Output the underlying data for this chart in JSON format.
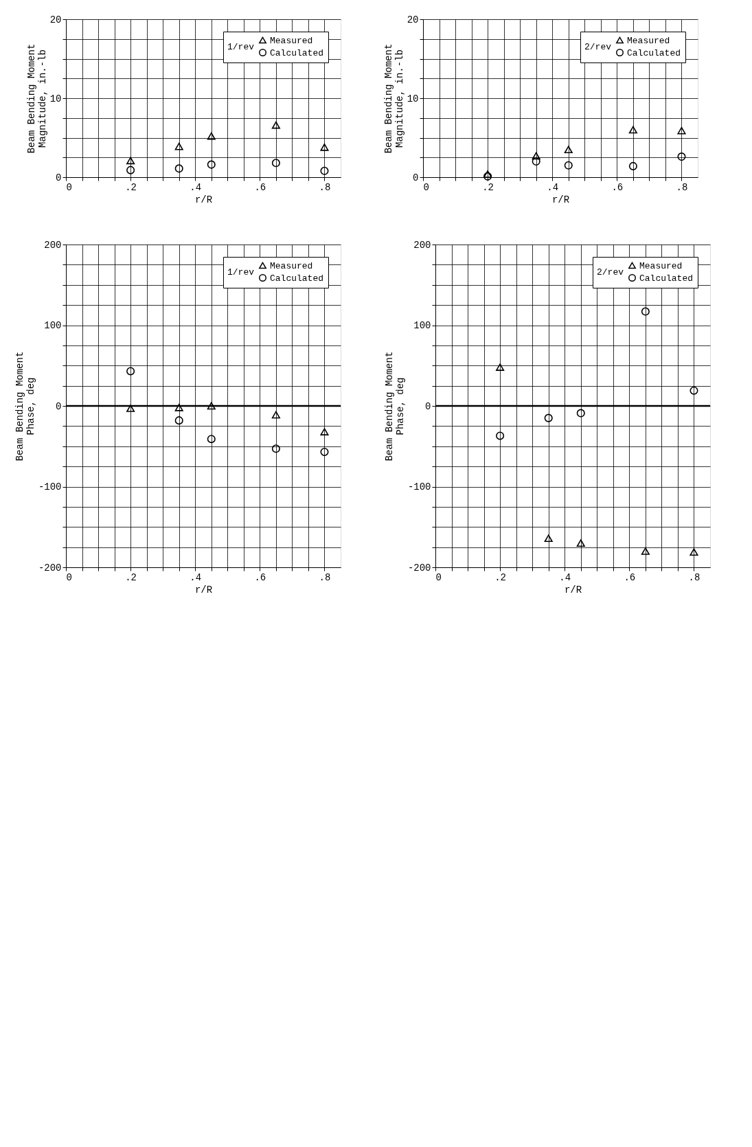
{
  "chart_data": [
    {
      "type": "scatter",
      "xlabel": "r/R",
      "ylabel": "Beam Bending Moment\nMagnitude, in.-lb",
      "legend_title": "1/rev",
      "legend": "top right",
      "grid": true,
      "xlim": [
        0,
        0.85
      ],
      "xticks": [
        0,
        {
          "value": 0.05,
          "label": null
        },
        {
          "value": 0.1,
          "label": null
        },
        {
          "value": 0.15,
          "label": null
        },
        {
          "value": 0.2,
          "label": ".2"
        },
        {
          "value": 0.25,
          "label": null
        },
        {
          "value": 0.3,
          "label": null
        },
        {
          "value": 0.35,
          "label": null
        },
        {
          "value": 0.4,
          "label": ".4"
        },
        {
          "value": 0.45,
          "label": null
        },
        {
          "value": 0.5,
          "label": null
        },
        {
          "value": 0.55,
          "label": null
        },
        {
          "value": 0.6,
          "label": ".6"
        },
        {
          "value": 0.65,
          "label": null
        },
        {
          "value": 0.7,
          "label": null
        },
        {
          "value": 0.75,
          "label": null
        },
        {
          "value": 0.8,
          "label": ".8"
        }
      ],
      "ylim": [
        0,
        20
      ],
      "yticks": [
        0,
        {
          "value": 2.5,
          "label": null
        },
        {
          "value": 5,
          "label": null
        },
        {
          "value": 7.5,
          "label": null
        },
        10,
        {
          "value": 12.5,
          "label": null
        },
        {
          "value": 15,
          "label": null
        },
        {
          "value": 17.5,
          "label": null
        },
        20
      ],
      "x": [
        0.2,
        0.35,
        0.45,
        0.65,
        0.8
      ],
      "series": [
        {
          "name": "Measured",
          "color": "#000000",
          "marker": "triangle",
          "values": [
            2.1,
            3.9,
            5.2,
            6.6,
            3.8
          ]
        },
        {
          "name": "Calculated",
          "color": "#000000",
          "marker": "circle",
          "values": [
            0.9,
            1.1,
            1.6,
            1.8,
            0.8
          ]
        }
      ]
    },
    {
      "type": "scatter",
      "xlabel": "r/R",
      "ylabel": "Beam Bending Moment\nMagnitude, in.-lb",
      "legend_title": "2/rev",
      "legend": "top right",
      "grid": true,
      "xlim": [
        0,
        0.85
      ],
      "xticks": [
        0,
        {
          "value": 0.05,
          "label": null
        },
        {
          "value": 0.1,
          "label": null
        },
        {
          "value": 0.15,
          "label": null
        },
        {
          "value": 0.2,
          "label": ".2"
        },
        {
          "value": 0.25,
          "label": null
        },
        {
          "value": 0.3,
          "label": null
        },
        {
          "value": 0.35,
          "label": null
        },
        {
          "value": 0.4,
          "label": ".4"
        },
        {
          "value": 0.45,
          "label": null
        },
        {
          "value": 0.5,
          "label": null
        },
        {
          "value": 0.55,
          "label": null
        },
        {
          "value": 0.6,
          "label": ".6"
        },
        {
          "value": 0.65,
          "label": null
        },
        {
          "value": 0.7,
          "label": null
        },
        {
          "value": 0.75,
          "label": null
        },
        {
          "value": 0.8,
          "label": ".8"
        }
      ],
      "ylim": [
        0,
        20
      ],
      "yticks": [
        0,
        {
          "value": 2.5,
          "label": null
        },
        {
          "value": 5,
          "label": null
        },
        {
          "value": 7.5,
          "label": null
        },
        10,
        {
          "value": 12.5,
          "label": null
        },
        {
          "value": 15,
          "label": null
        },
        {
          "value": 17.5,
          "label": null
        },
        20
      ],
      "x": [
        0.2,
        0.35,
        0.45,
        0.65,
        0.8
      ],
      "series": [
        {
          "name": "Measured",
          "color": "#000000",
          "marker": "triangle",
          "values": [
            0.4,
            2.7,
            3.5,
            6.0,
            5.9
          ]
        },
        {
          "name": "Calculated",
          "color": "#000000",
          "marker": "circle",
          "values": [
            0.1,
            2.0,
            1.5,
            1.4,
            2.6
          ]
        }
      ]
    },
    {
      "type": "scatter",
      "xlabel": "r/R",
      "ylabel": "Beam Bending Moment\nPhase, deg",
      "legend_title": "1/rev",
      "legend": "top right",
      "grid": true,
      "xlim": [
        0,
        0.85
      ],
      "xticks": [
        0,
        {
          "value": 0.05,
          "label": null
        },
        {
          "value": 0.1,
          "label": null
        },
        {
          "value": 0.15,
          "label": null
        },
        {
          "value": 0.2,
          "label": ".2"
        },
        {
          "value": 0.25,
          "label": null
        },
        {
          "value": 0.3,
          "label": null
        },
        {
          "value": 0.35,
          "label": null
        },
        {
          "value": 0.4,
          "label": ".4"
        },
        {
          "value": 0.45,
          "label": null
        },
        {
          "value": 0.5,
          "label": null
        },
        {
          "value": 0.55,
          "label": null
        },
        {
          "value": 0.6,
          "label": ".6"
        },
        {
          "value": 0.65,
          "label": null
        },
        {
          "value": 0.7,
          "label": null
        },
        {
          "value": 0.75,
          "label": null
        },
        {
          "value": 0.8,
          "label": ".8"
        }
      ],
      "ylim": [
        -200,
        200
      ],
      "yticks": [
        -200,
        {
          "value": -175,
          "label": null
        },
        {
          "value": -150,
          "label": null
        },
        {
          "value": -125,
          "label": null
        },
        -100,
        {
          "value": -75,
          "label": null
        },
        {
          "value": -50,
          "label": null
        },
        {
          "value": -25,
          "label": null
        },
        0,
        {
          "value": 25,
          "label": null
        },
        {
          "value": 50,
          "label": null
        },
        {
          "value": 75,
          "label": null
        },
        100,
        {
          "value": 125,
          "label": null
        },
        {
          "value": 150,
          "label": null
        },
        {
          "value": 175,
          "label": null
        },
        200
      ],
      "ref_lines": [
        {
          "axis": "y",
          "value": 0,
          "color": "#000000"
        }
      ],
      "x": [
        0.2,
        0.35,
        0.45,
        0.65,
        0.8
      ],
      "series": [
        {
          "name": "Measured",
          "color": "#000000",
          "marker": "triangle",
          "values": [
            -3,
            -2,
            0,
            -11,
            -32
          ]
        },
        {
          "name": "Calculated",
          "color": "#000000",
          "marker": "circle",
          "values": [
            43,
            -18,
            -41,
            -53,
            -57
          ]
        }
      ]
    },
    {
      "type": "scatter",
      "xlabel": "r/R",
      "ylabel": "Beam Bending Moment\nPhase, deg",
      "legend_title": "2/rev",
      "legend": "top right",
      "grid": true,
      "xlim": [
        0,
        0.85
      ],
      "xticks": [
        0,
        {
          "value": 0.05,
          "label": null
        },
        {
          "value": 0.1,
          "label": null
        },
        {
          "value": 0.15,
          "label": null
        },
        {
          "value": 0.2,
          "label": ".2"
        },
        {
          "value": 0.25,
          "label": null
        },
        {
          "value": 0.3,
          "label": null
        },
        {
          "value": 0.35,
          "label": null
        },
        {
          "value": 0.4,
          "label": ".4"
        },
        {
          "value": 0.45,
          "label": null
        },
        {
          "value": 0.5,
          "label": null
        },
        {
          "value": 0.55,
          "label": null
        },
        {
          "value": 0.6,
          "label": ".6"
        },
        {
          "value": 0.65,
          "label": null
        },
        {
          "value": 0.7,
          "label": null
        },
        {
          "value": 0.75,
          "label": null
        },
        {
          "value": 0.8,
          "label": ".8"
        }
      ],
      "ylim": [
        -200,
        200
      ],
      "yticks": [
        -200,
        {
          "value": -175,
          "label": null
        },
        {
          "value": -150,
          "label": null
        },
        {
          "value": -125,
          "label": null
        },
        -100,
        {
          "value": -75,
          "label": null
        },
        {
          "value": -50,
          "label": null
        },
        {
          "value": -25,
          "label": null
        },
        0,
        {
          "value": 25,
          "label": null
        },
        {
          "value": 50,
          "label": null
        },
        {
          "value": 75,
          "label": null
        },
        100,
        {
          "value": 125,
          "label": null
        },
        {
          "value": 150,
          "label": null
        },
        {
          "value": 175,
          "label": null
        },
        200
      ],
      "ref_lines": [
        {
          "axis": "y",
          "value": 0,
          "color": "#000000"
        }
      ],
      "x": [
        0.2,
        0.35,
        0.45,
        0.65,
        0.8
      ],
      "series": [
        {
          "name": "Measured",
          "color": "#000000",
          "marker": "triangle",
          "values": [
            48,
            -164,
            -170,
            -180,
            -181
          ]
        },
        {
          "name": "Calculated",
          "color": "#000000",
          "marker": "circle",
          "values": [
            -37,
            -15,
            -9,
            117,
            19
          ]
        }
      ]
    }
  ]
}
